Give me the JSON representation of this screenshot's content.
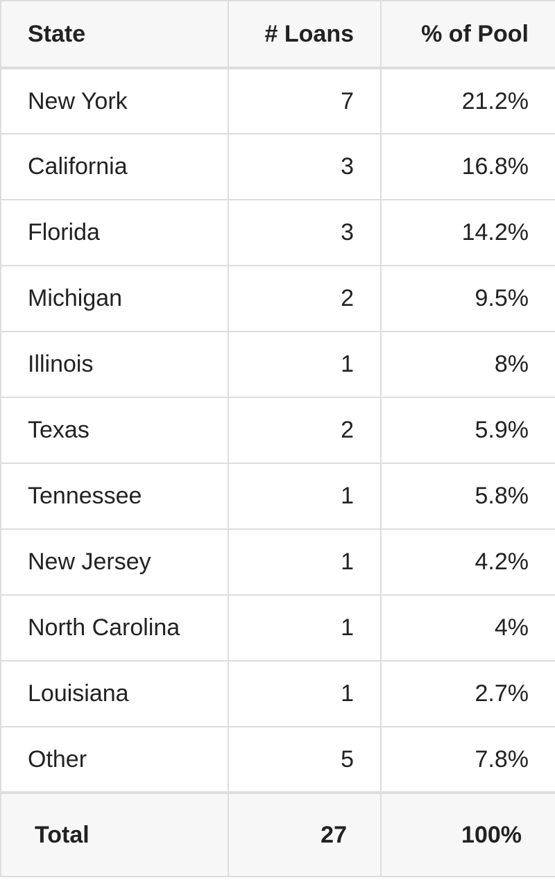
{
  "table": {
    "header": [
      "State",
      "# Loans",
      "% of Pool"
    ],
    "rows": [
      [
        "New York",
        "7",
        "21.2%"
      ],
      [
        "California",
        "3",
        "16.8%"
      ],
      [
        "Florida",
        "3",
        "14.2%"
      ],
      [
        "Michigan",
        "2",
        "9.5%"
      ],
      [
        "Illinois",
        "1",
        "8%"
      ],
      [
        "Texas",
        "2",
        "5.9%"
      ],
      [
        "Tennessee",
        "1",
        "5.8%"
      ],
      [
        "New Jersey",
        "1",
        "4.2%"
      ],
      [
        "North Carolina",
        "1",
        "4%"
      ],
      [
        "Louisiana",
        "1",
        "2.7%"
      ],
      [
        "Other",
        "5",
        "7.8%"
      ]
    ],
    "total": [
      "Total",
      "27",
      "100%"
    ]
  }
}
